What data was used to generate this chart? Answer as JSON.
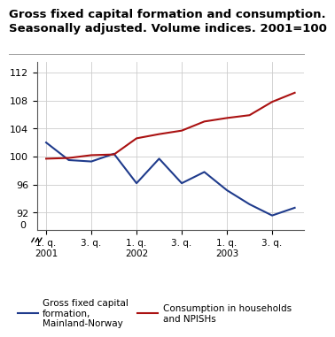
{
  "title": "Gross fixed capital formation and consumption.\nSeasonally adjusted. Volume indices. 2001=100",
  "title_fontsize": 9.5,
  "blue_color": "#1f3b8c",
  "red_color": "#aa1111",
  "background_color": "#ffffff",
  "grid_color": "#cccccc",
  "yticks": [
    92,
    96,
    100,
    104,
    108,
    112
  ],
  "yticklabels": [
    "92",
    "96",
    "100",
    "104",
    "108",
    "112"
  ],
  "ylim": [
    89.5,
    113.5
  ],
  "xlim": [
    -0.4,
    11.4
  ],
  "x_tick_positions": [
    0,
    2,
    4,
    6,
    8,
    10
  ],
  "x_tick_labels": [
    "1. q.\n2001",
    "3. q.",
    "1. q.\n2002",
    "3. q.",
    "1. q.\n2003",
    "3. q."
  ],
  "blue_x": [
    0,
    1,
    2,
    3,
    4,
    5,
    6,
    7,
    8,
    9,
    10,
    11
  ],
  "blue_values": [
    102.0,
    99.5,
    99.3,
    100.4,
    96.2,
    99.7,
    96.2,
    97.8,
    95.2,
    93.2,
    91.6,
    92.7
  ],
  "red_x": [
    0,
    1,
    2,
    3,
    4,
    5,
    6,
    7,
    8,
    9,
    10,
    11
  ],
  "red_values": [
    99.7,
    99.8,
    100.2,
    100.3,
    102.6,
    103.2,
    103.7,
    105.0,
    105.5,
    105.9,
    107.8,
    109.1
  ],
  "legend_label_blue": "Gross fixed capital\nformation,\nMainland-Norway",
  "legend_label_red": "Consumption in households\nand NPISHs"
}
